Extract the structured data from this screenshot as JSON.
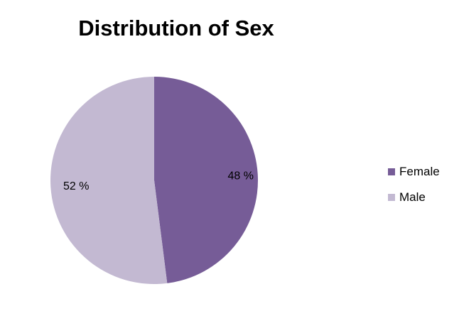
{
  "chart_data": {
    "type": "pie",
    "title": "Distribution of Sex",
    "categories": [
      "Female",
      "Male"
    ],
    "values": [
      48,
      52
    ],
    "labels": [
      "48 %",
      "52 %"
    ],
    "colors": [
      "#765C97",
      "#C3B9D2"
    ],
    "legend_position": "right"
  }
}
